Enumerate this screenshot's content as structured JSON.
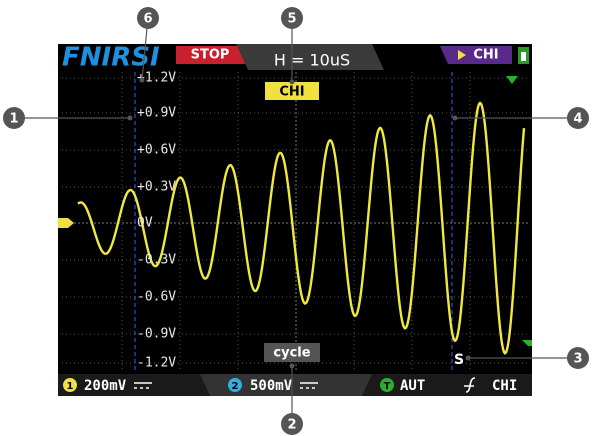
{
  "header": {
    "brand": "FNIRSI",
    "status": "STOP",
    "timebase": "H = 10uS",
    "trigger_channel": "CHI"
  },
  "channel_tag": "CHI",
  "y_labels": [
    "+1.2V",
    "+0.9V",
    "+0.6V",
    "+0.3V",
    "0V",
    "-0.3V",
    "-0.6V",
    "-0.9V",
    "-1.2V"
  ],
  "measure_label": "cycle",
  "cursor_tag": "S",
  "footer": {
    "ch1_icon": "1",
    "ch1_scale": "200mV",
    "ch2_icon": "2",
    "ch2_scale": "500mV",
    "trigger_icon": "T",
    "trigger_mode": "AUT",
    "trigger_source": "CHI"
  },
  "callouts": [
    "1",
    "2",
    "3",
    "4",
    "5",
    "6"
  ]
}
